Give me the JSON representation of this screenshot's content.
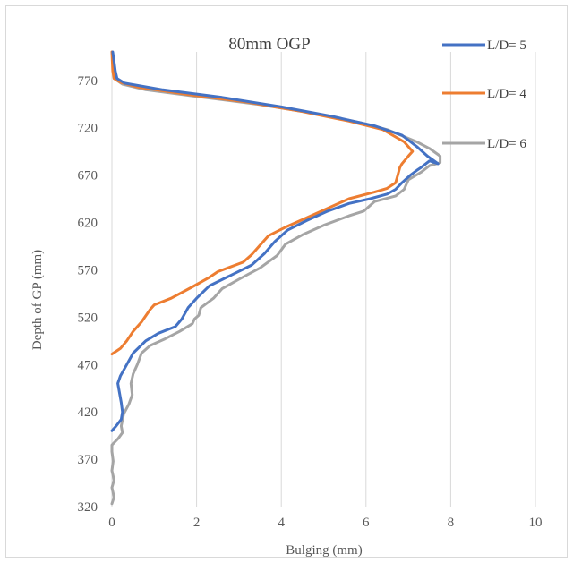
{
  "chart_data": {
    "type": "line",
    "title": "80mm OGP",
    "xlabel": "Bulging (mm)",
    "ylabel": "Depth of GP (mm)",
    "xlim": [
      0,
      10
    ],
    "ylim": [
      320,
      800
    ],
    "xticks": [
      0,
      2,
      4,
      6,
      8,
      10
    ],
    "yticks": [
      320,
      370,
      420,
      470,
      520,
      570,
      620,
      670,
      720,
      770
    ],
    "grid": "vertical",
    "legend_position": "top-right",
    "series": [
      {
        "name": "L/D= 5",
        "color": "#4472c4",
        "points": [
          [
            0,
            400
          ],
          [
            0.1,
            405
          ],
          [
            0.22,
            412
          ],
          [
            0.25,
            420
          ],
          [
            0.22,
            430
          ],
          [
            0.18,
            440
          ],
          [
            0.14,
            450
          ],
          [
            0.2,
            458
          ],
          [
            0.35,
            470
          ],
          [
            0.5,
            482
          ],
          [
            0.8,
            495
          ],
          [
            1.1,
            503
          ],
          [
            1.5,
            510
          ],
          [
            1.65,
            518
          ],
          [
            1.8,
            530
          ],
          [
            2.0,
            540
          ],
          [
            2.3,
            553
          ],
          [
            2.8,
            564
          ],
          [
            3.3,
            575
          ],
          [
            3.6,
            587
          ],
          [
            3.85,
            600
          ],
          [
            4.15,
            612
          ],
          [
            4.6,
            622
          ],
          [
            5.1,
            632
          ],
          [
            5.6,
            640
          ],
          [
            6.1,
            645
          ],
          [
            6.5,
            650
          ],
          [
            6.7,
            655
          ],
          [
            6.85,
            662
          ],
          [
            7.05,
            670
          ],
          [
            7.2,
            675
          ],
          [
            7.3,
            678
          ],
          [
            7.5,
            685
          ],
          [
            7.7,
            682
          ],
          [
            7.45,
            690
          ],
          [
            7.2,
            700
          ],
          [
            6.85,
            712
          ],
          [
            6.2,
            722
          ],
          [
            5.2,
            732
          ],
          [
            4.0,
            742
          ],
          [
            2.6,
            752
          ],
          [
            1.2,
            760
          ],
          [
            0.3,
            767
          ],
          [
            0.12,
            772
          ],
          [
            0.08,
            780
          ],
          [
            0.05,
            790
          ],
          [
            0.02,
            800
          ]
        ]
      },
      {
        "name": "L/D= 4",
        "color": "#ed7d31",
        "points": [
          [
            0,
            481
          ],
          [
            0.2,
            487
          ],
          [
            0.35,
            495
          ],
          [
            0.5,
            505
          ],
          [
            0.7,
            515
          ],
          [
            0.9,
            528
          ],
          [
            1.0,
            533
          ],
          [
            1.4,
            540
          ],
          [
            1.9,
            552
          ],
          [
            2.3,
            562
          ],
          [
            2.5,
            568
          ],
          [
            3.1,
            578
          ],
          [
            3.3,
            586
          ],
          [
            3.5,
            596
          ],
          [
            3.7,
            606
          ],
          [
            4.1,
            615
          ],
          [
            4.6,
            625
          ],
          [
            5.1,
            635
          ],
          [
            5.6,
            645
          ],
          [
            6.2,
            652
          ],
          [
            6.5,
            656
          ],
          [
            6.7,
            662
          ],
          [
            6.75,
            670
          ],
          [
            6.8,
            678
          ],
          [
            6.85,
            682
          ],
          [
            7.0,
            690
          ],
          [
            7.1,
            695
          ],
          [
            6.9,
            705
          ],
          [
            6.4,
            718
          ],
          [
            5.6,
            727
          ],
          [
            4.5,
            737
          ],
          [
            3.2,
            747
          ],
          [
            1.8,
            755
          ],
          [
            0.6,
            763
          ],
          [
            0.2,
            768
          ],
          [
            0.05,
            772
          ],
          [
            0.02,
            780
          ],
          [
            0,
            800
          ]
        ]
      },
      {
        "name": "L/D= 6",
        "color": "#a5a5a5",
        "points": [
          [
            0,
            323
          ],
          [
            0.05,
            330
          ],
          [
            0,
            340
          ],
          [
            0.05,
            348
          ],
          [
            0,
            358
          ],
          [
            0.03,
            368
          ],
          [
            0,
            378
          ],
          [
            0,
            385
          ],
          [
            0.15,
            392
          ],
          [
            0.25,
            398
          ],
          [
            0.22,
            405
          ],
          [
            0.28,
            418
          ],
          [
            0.4,
            428
          ],
          [
            0.48,
            438
          ],
          [
            0.45,
            450
          ],
          [
            0.5,
            460
          ],
          [
            0.6,
            470
          ],
          [
            0.7,
            482
          ],
          [
            0.9,
            490
          ],
          [
            1.25,
            497
          ],
          [
            1.6,
            505
          ],
          [
            1.9,
            513
          ],
          [
            1.95,
            518
          ],
          [
            2.05,
            522
          ],
          [
            2.1,
            530
          ],
          [
            2.4,
            540
          ],
          [
            2.6,
            550
          ],
          [
            3.0,
            560
          ],
          [
            3.5,
            572
          ],
          [
            3.9,
            585
          ],
          [
            4.1,
            597
          ],
          [
            4.5,
            607
          ],
          [
            5.0,
            617
          ],
          [
            5.6,
            627
          ],
          [
            5.95,
            632
          ],
          [
            6.2,
            642
          ],
          [
            6.7,
            648
          ],
          [
            6.9,
            655
          ],
          [
            7.0,
            665
          ],
          [
            7.3,
            673
          ],
          [
            7.5,
            680
          ],
          [
            7.75,
            683
          ],
          [
            7.75,
            690
          ],
          [
            7.5,
            698
          ],
          [
            7.2,
            705
          ],
          [
            6.5,
            718
          ],
          [
            5.9,
            725
          ],
          [
            4.8,
            735
          ],
          [
            3.4,
            745
          ],
          [
            2.0,
            753
          ],
          [
            0.8,
            760
          ],
          [
            0.25,
            766
          ],
          [
            0.05,
            772
          ],
          [
            0.03,
            785
          ],
          [
            0.01,
            800
          ]
        ]
      }
    ]
  }
}
